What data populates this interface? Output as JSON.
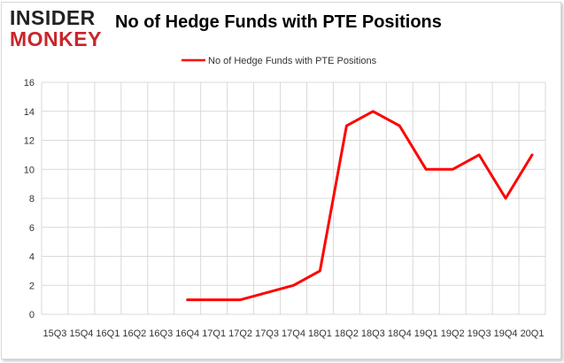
{
  "logo": {
    "line1": "INSIDER",
    "line2": "MONKEY"
  },
  "chart_data": {
    "type": "line",
    "title": "No of Hedge Funds with PTE Positions",
    "xlabel": "",
    "ylabel": "",
    "categories": [
      "2015Q3",
      "2015Q4",
      "2016Q1",
      "2016Q2",
      "2016Q3",
      "2016Q4",
      "2017Q1",
      "2017Q2",
      "2017Q3",
      "2017Q4",
      "2018Q1",
      "2018Q2",
      "2018Q3",
      "2018Q4",
      "2019Q1",
      "2019Q2",
      "2019Q3",
      "2019Q4",
      "2020Q1"
    ],
    "tick_labels": [
      "15Q3",
      "15Q4",
      "16Q1",
      "16Q2",
      "16Q3",
      "16Q4",
      "17Q1",
      "17Q2",
      "17Q3",
      "17Q4",
      "18Q1",
      "18Q2",
      "18Q3",
      "18Q4",
      "19Q1",
      "19Q2",
      "19Q3",
      "19Q4",
      "20Q1"
    ],
    "series": [
      {
        "name": "No of Hedge Funds with PTE Positions",
        "color": "#ff0000",
        "values": [
          null,
          null,
          null,
          null,
          null,
          1,
          1,
          1,
          1.5,
          2,
          3,
          13,
          14,
          13,
          10,
          10,
          11,
          8,
          11
        ]
      }
    ],
    "ylim": [
      0,
      16
    ],
    "yticks": [
      0,
      2,
      4,
      6,
      8,
      10,
      12,
      14,
      16
    ],
    "grid": true,
    "legend": "top-center"
  }
}
